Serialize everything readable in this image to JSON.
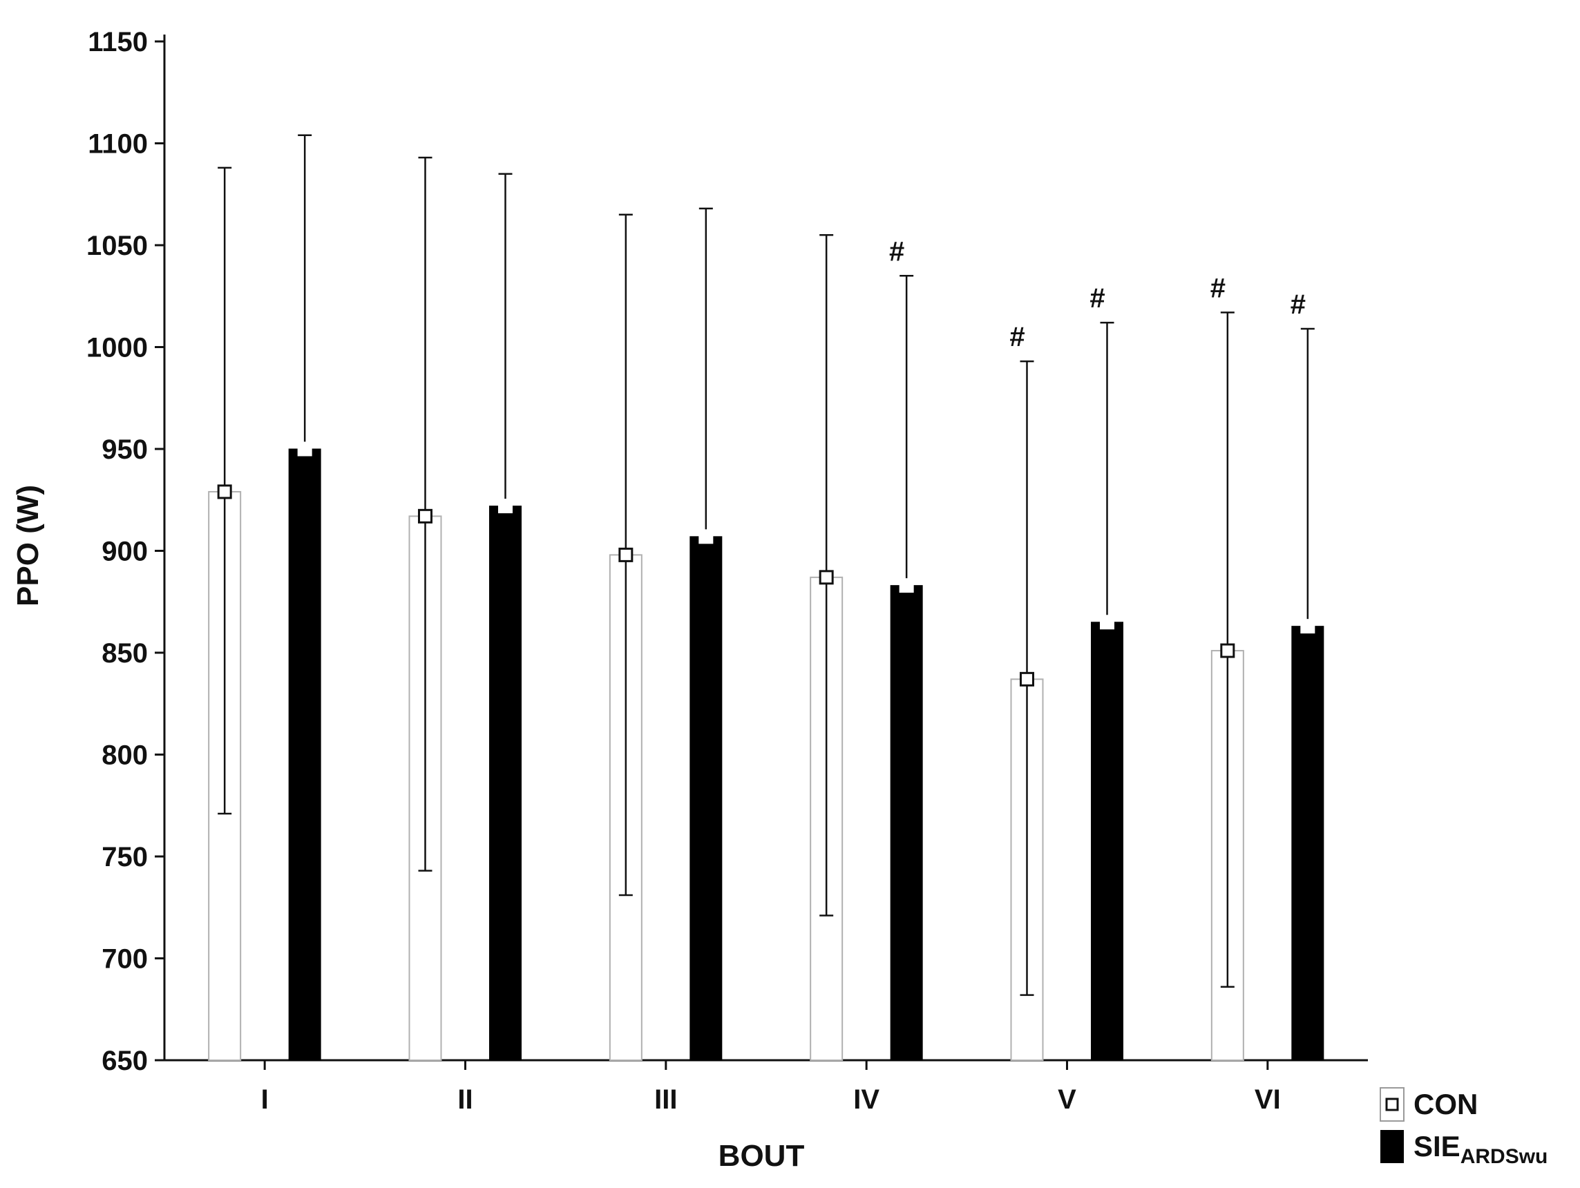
{
  "chart_data": {
    "type": "bar",
    "xlabel": "BOUT",
    "ylabel": "PPO (W)",
    "ylim": [
      650,
      1150
    ],
    "yticks": [
      650,
      700,
      750,
      800,
      850,
      900,
      950,
      1000,
      1050,
      1100,
      1150
    ],
    "categories": [
      "I",
      "II",
      "III",
      "IV",
      "V",
      "VI"
    ],
    "grid": false,
    "legend_position": "bottom-right",
    "series": [
      {
        "name": "CON",
        "name_sub": "",
        "fill": "#ffffff",
        "stroke": "#b0b0b0",
        "values": [
          929,
          917,
          898,
          887,
          837,
          851
        ],
        "err_upper": [
          1088,
          1093,
          1065,
          1055,
          993,
          1017
        ],
        "err_lower": [
          771,
          743,
          731,
          721,
          682,
          686
        ],
        "significance": [
          "",
          "",
          "",
          "",
          "#",
          "#"
        ]
      },
      {
        "name": "SIE",
        "name_sub": "ARDSwu",
        "fill": "#000000",
        "stroke": "#000000",
        "values": [
          950,
          922,
          907,
          883,
          865,
          863
        ],
        "err_upper": [
          1104,
          1085,
          1068,
          1035,
          1012,
          1009
        ],
        "err_lower": [
          null,
          null,
          null,
          null,
          null,
          null
        ],
        "significance": [
          "",
          "",
          "",
          "#",
          "#",
          "#"
        ]
      }
    ]
  }
}
